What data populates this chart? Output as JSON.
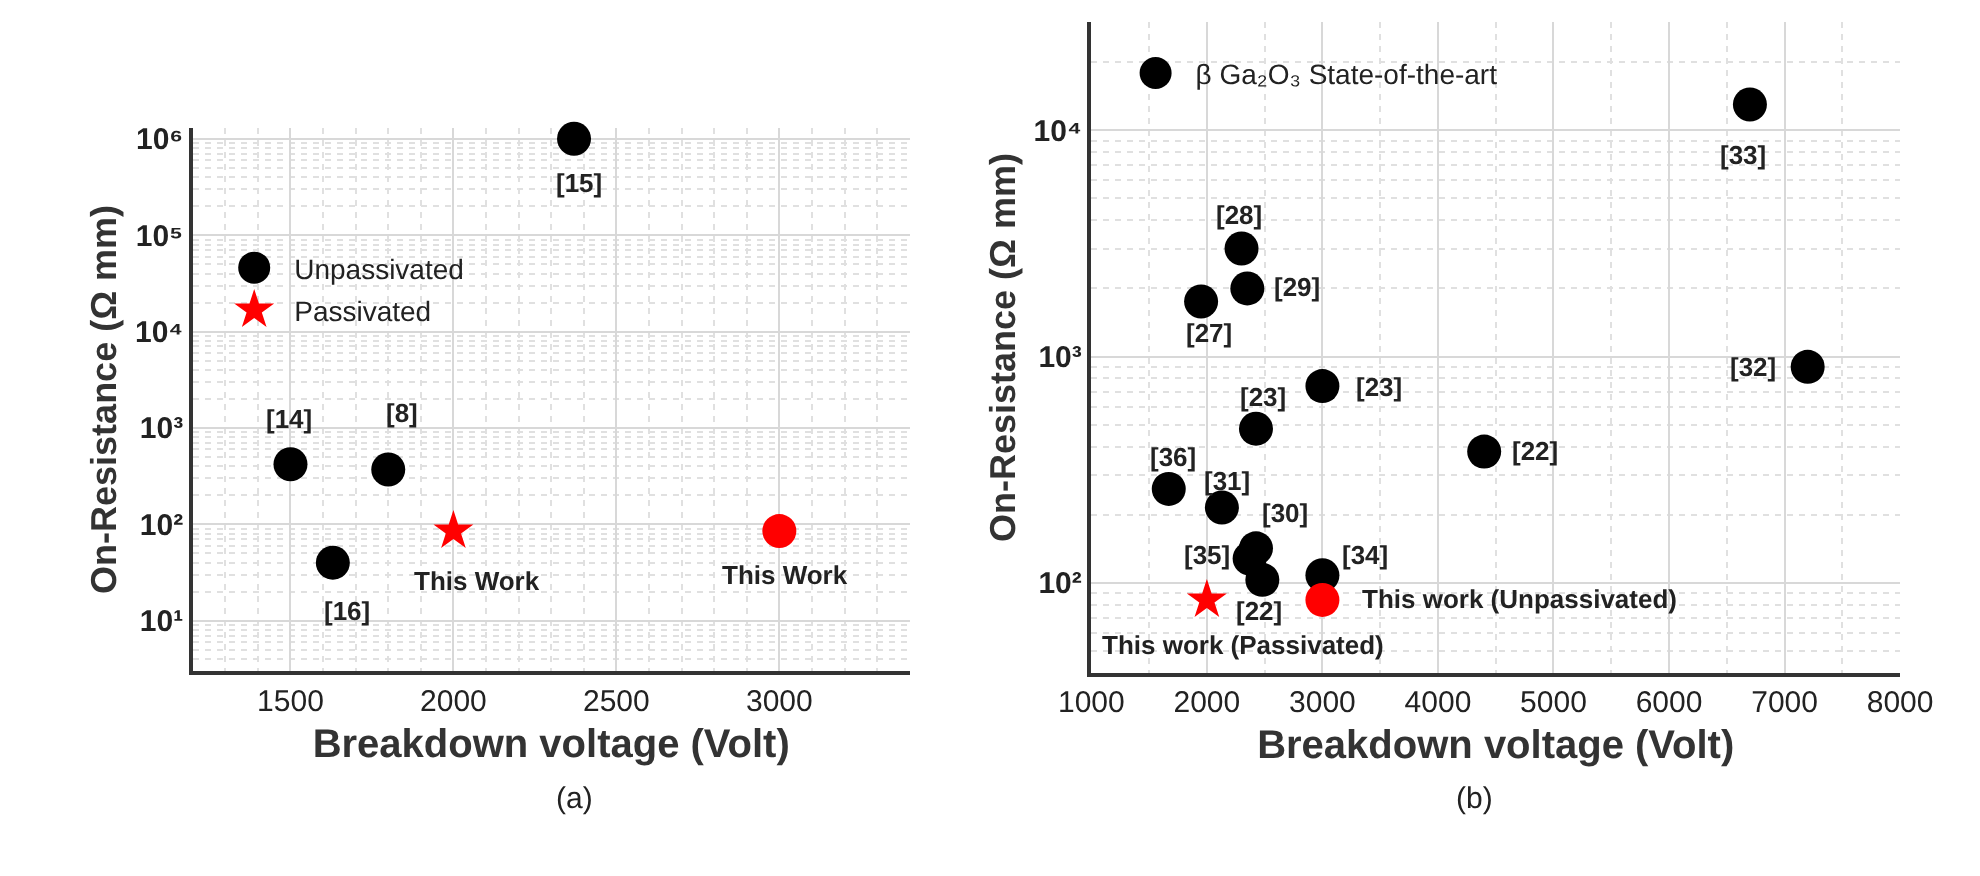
{
  "chart_data": [
    {
      "type": "scatter",
      "log": true,
      "grid": true,
      "legend": "top left",
      "xlabel": "Breakdown voltage (Volt)",
      "ylabel": "On-Resistance (Ω mm)",
      "xlim": [
        1200,
        3400
      ],
      "xticks": [
        1500,
        2000,
        2500,
        3000
      ],
      "ylim": [
        3,
        1300000
      ],
      "yticks": [
        {
          "value": 10,
          "label": "10¹"
        },
        {
          "value": 100,
          "label": "10²"
        },
        {
          "value": 1000,
          "label": "10³"
        },
        {
          "value": 10000,
          "label": "10⁴"
        },
        {
          "value": 100000,
          "label": "10⁵"
        },
        {
          "value": 1000000,
          "label": "10⁶"
        }
      ],
      "series": [
        {
          "name": "Unpassivated",
          "marker": "circle",
          "x": [
            1500,
            1800,
            1630,
            2370,
            3000
          ],
          "values": [
            420,
            370,
            40,
            1000000,
            85
          ],
          "colors": [
            "#000000",
            "#000000",
            "#000000",
            "#000000",
            "#ff0000"
          ]
        },
        {
          "name": "Passivated",
          "marker": "star",
          "x": [
            2000
          ],
          "values": [
            85
          ],
          "color": "#ff0000"
        }
      ],
      "annotations": [
        {
          "text": "[15]",
          "x": 2370,
          "y": 1000000
        },
        {
          "text": "[14]",
          "x": 1500,
          "y": 420
        },
        {
          "text": "[8]",
          "x": 1800,
          "y": 370
        },
        {
          "text": "[16]",
          "x": 1630,
          "y": 40
        },
        {
          "text": "This Work",
          "x": 2000,
          "y": 85
        },
        {
          "text": "This Work",
          "x": 3000,
          "y": 85
        },
        "(a)"
      ]
    },
    {
      "type": "scatter",
      "log": true,
      "grid": true,
      "legend": "top left",
      "xlabel": "Breakdown voltage (Volt)",
      "ylabel": "On-Resistance (Ω mm)",
      "xlim": [
        1000,
        8000
      ],
      "xticks": [
        1000,
        2000,
        3000,
        4000,
        5000,
        6000,
        7000,
        8000
      ],
      "ylim": [
        40,
        30000
      ],
      "yticks": [
        {
          "value": 100,
          "label": "10²"
        },
        {
          "value": 1000,
          "label": "10³"
        },
        {
          "value": 10000,
          "label": "10⁴"
        }
      ],
      "series": [
        {
          "name": "β Ga₂O₃ State-of-the-art",
          "marker": "circle",
          "color": "#000000",
          "x": [
            6700,
            2300,
            2350,
            1950,
            3000,
            7200,
            2425,
            4400,
            1670,
            2130,
            2425,
            2370,
            2480,
            3000
          ],
          "values": [
            13000,
            3000,
            2000,
            1750,
            740,
            900,
            480,
            380,
            260,
            215,
            142,
            128,
            103,
            108
          ]
        },
        {
          "marker": "star",
          "color": "#ff0000",
          "x": [
            2000
          ],
          "values": [
            84
          ]
        },
        {
          "marker": "circle",
          "color": "#ff0000",
          "x": [
            3000
          ],
          "values": [
            84
          ]
        }
      ],
      "annotations": [
        {
          "text": "[33]",
          "x": 6700,
          "y": 13000
        },
        {
          "text": "[28]",
          "x": 2300,
          "y": 3000
        },
        {
          "text": "[29]",
          "x": 2350,
          "y": 2000
        },
        {
          "text": "[27]",
          "x": 1950,
          "y": 1750
        },
        {
          "text": "[23]",
          "x": 3000,
          "y": 740
        },
        {
          "text": "[32]",
          "x": 7200,
          "y": 900
        },
        {
          "text": "[23]",
          "x": 2425,
          "y": 480
        },
        {
          "text": "[22]",
          "x": 4400,
          "y": 380
        },
        {
          "text": "[36]",
          "x": 1670,
          "y": 260
        },
        {
          "text": "[31]",
          "x": 2130,
          "y": 215
        },
        {
          "text": "[30]",
          "x": 2425,
          "y": 142
        },
        {
          "text": "[35]",
          "x": 2370,
          "y": 128
        },
        {
          "text": "[22]",
          "x": 2480,
          "y": 103
        },
        {
          "text": "[34]",
          "x": 3000,
          "y": 108
        },
        {
          "text": "This work (Unpassivated)",
          "x": 3000,
          "y": 84
        },
        {
          "text": "This work (Passivated)",
          "x": 2000,
          "y": 84
        },
        "(b)"
      ]
    }
  ]
}
